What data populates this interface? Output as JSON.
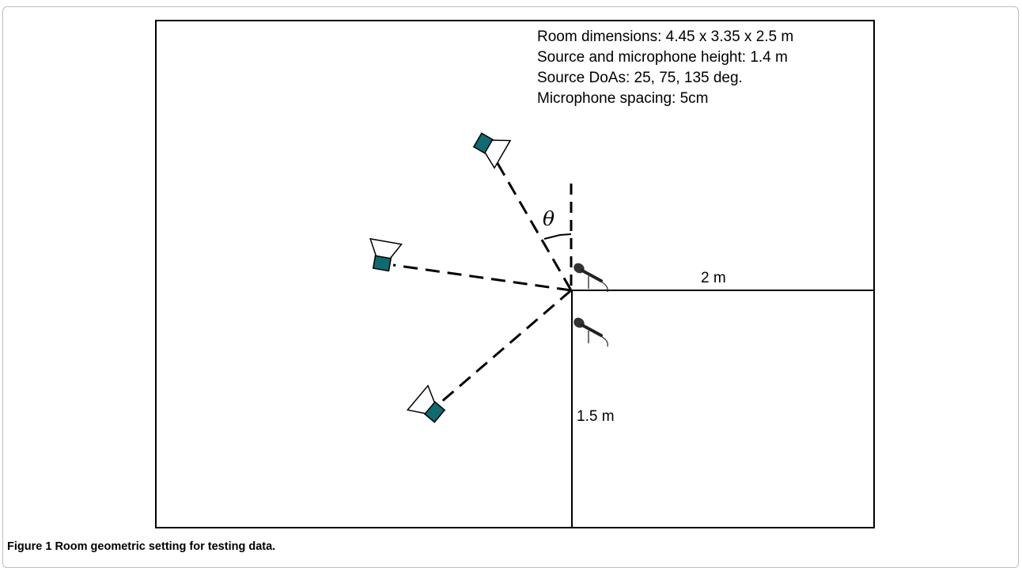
{
  "info": {
    "lines": [
      "Room dimensions: 4.45 x 3.35 x 2.5 m",
      "Source and microphone height: 1.4 m",
      "Source DoAs: 25, 75, 135 deg.",
      "Microphone spacing: 5cm"
    ]
  },
  "labels": {
    "theta": "θ",
    "x_dist": "2 m",
    "y_dist": "1.5 m"
  },
  "sources": {
    "doa_deg": [
      25,
      75,
      135
    ],
    "speaker_color": "#0e6b70"
  },
  "caption": {
    "label": "Figure 1",
    "text": "Room geometric setting for testing data."
  }
}
